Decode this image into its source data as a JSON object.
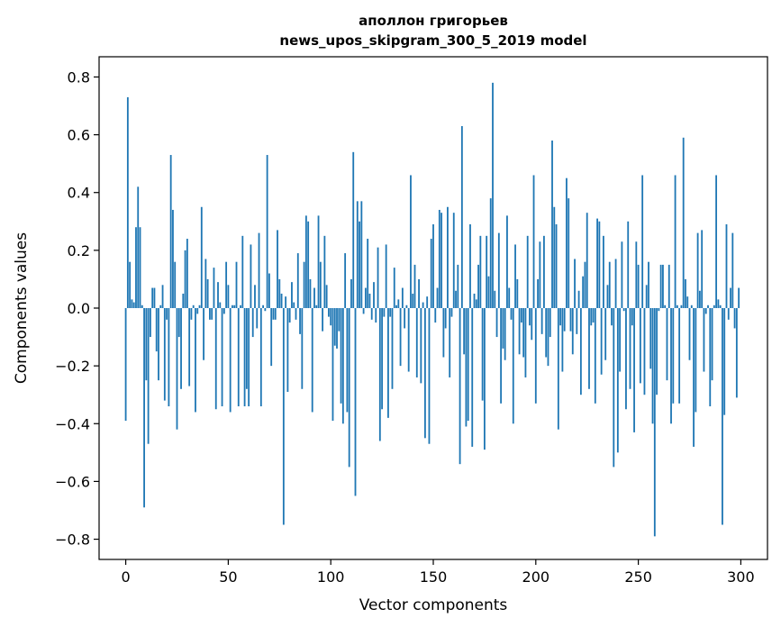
{
  "chart_data": {
    "type": "bar",
    "title_line1": "аполлон григорьев",
    "title_line2": "news_upos_skipgram_300_5_2019 model",
    "xlabel": "Vector components",
    "ylabel": "Components values",
    "xlim": [
      -13,
      313
    ],
    "ylim": [
      -0.87,
      0.87
    ],
    "xticks": [
      0,
      50,
      100,
      150,
      200,
      250,
      300
    ],
    "xtick_labels": [
      "0",
      "50",
      "100",
      "150",
      "200",
      "250",
      "300"
    ],
    "yticks": [
      -0.8,
      -0.6,
      -0.4,
      -0.2,
      0.0,
      0.2,
      0.4,
      0.6,
      0.8
    ],
    "ytick_labels": [
      "−0.8",
      "−0.6",
      "−0.4",
      "−0.2",
      "0.0",
      "0.2",
      "0.4",
      "0.6",
      "0.8"
    ],
    "grid": false,
    "bar_color": "#1f77b4",
    "x_start": 0,
    "values": [
      -0.39,
      0.73,
      0.16,
      0.03,
      0.02,
      0.28,
      0.42,
      0.28,
      0.01,
      -0.69,
      -0.25,
      -0.47,
      -0.1,
      0.07,
      0.07,
      -0.15,
      -0.25,
      0.01,
      0.08,
      -0.32,
      -0.04,
      -0.34,
      0.53,
      0.34,
      0.16,
      -0.42,
      -0.1,
      -0.28,
      0.05,
      0.2,
      0.24,
      -0.27,
      -0.04,
      0.01,
      -0.36,
      -0.02,
      0.01,
      0.35,
      -0.18,
      0.17,
      0.1,
      -0.04,
      -0.04,
      0.14,
      -0.35,
      0.09,
      0.02,
      -0.34,
      -0.02,
      0.16,
      0.08,
      -0.36,
      0.01,
      0.01,
      0.16,
      -0.34,
      0.01,
      0.25,
      -0.34,
      -0.28,
      -0.34,
      0.22,
      -0.1,
      0.08,
      -0.07,
      0.26,
      -0.34,
      0.01,
      -0.01,
      0.53,
      0.12,
      -0.2,
      -0.04,
      -0.04,
      0.27,
      0.1,
      0.05,
      -0.75,
      0.04,
      -0.29,
      -0.05,
      0.09,
      0.02,
      -0.04,
      0.19,
      -0.09,
      -0.28,
      0.16,
      0.32,
      0.3,
      0.1,
      -0.36,
      0.07,
      0.01,
      0.32,
      0.16,
      -0.08,
      0.25,
      0.08,
      -0.03,
      -0.06,
      -0.39,
      -0.13,
      -0.14,
      -0.08,
      -0.33,
      -0.4,
      0.19,
      -0.36,
      -0.55,
      0.1,
      0.54,
      -0.65,
      0.37,
      0.3,
      0.37,
      -0.02,
      0.07,
      0.24,
      0.05,
      -0.04,
      0.09,
      -0.05,
      0.21,
      -0.46,
      -0.35,
      -0.03,
      0.22,
      -0.38,
      -0.03,
      -0.28,
      0.14,
      0.01,
      0.03,
      -0.2,
      0.07,
      -0.07,
      0.01,
      -0.22,
      0.46,
      0.05,
      0.15,
      -0.24,
      0.1,
      -0.26,
      0.02,
      -0.45,
      0.04,
      -0.47,
      0.24,
      0.29,
      -0.05,
      0.07,
      0.34,
      0.33,
      -0.17,
      -0.07,
      0.35,
      -0.24,
      -0.03,
      0.33,
      0.06,
      0.15,
      -0.54,
      0.63,
      -0.16,
      -0.41,
      -0.39,
      0.29,
      -0.48,
      0.05,
      0.03,
      0.15,
      0.25,
      -0.32,
      -0.49,
      0.25,
      0.11,
      0.38,
      0.78,
      0.06,
      -0.1,
      0.26,
      -0.33,
      -0.14,
      -0.18,
      0.32,
      0.07,
      -0.04,
      -0.4,
      0.22,
      0.1,
      -0.16,
      -0.05,
      -0.17,
      -0.24,
      0.25,
      -0.06,
      -0.11,
      0.46,
      -0.33,
      0.1,
      0.23,
      -0.09,
      0.25,
      -0.17,
      -0.2,
      -0.1,
      0.58,
      0.35,
      0.29,
      -0.42,
      -0.06,
      -0.22,
      -0.08,
      0.45,
      0.38,
      -0.08,
      -0.16,
      0.17,
      -0.09,
      0.06,
      -0.3,
      0.11,
      0.16,
      0.33,
      -0.28,
      -0.06,
      -0.05,
      -0.33,
      0.31,
      0.3,
      -0.23,
      0.25,
      -0.18,
      0.08,
      0.16,
      -0.06,
      -0.55,
      0.17,
      -0.5,
      -0.22,
      0.23,
      -0.01,
      -0.35,
      0.3,
      -0.28,
      -0.06,
      -0.43,
      0.23,
      0.15,
      -0.26,
      0.46,
      -0.3,
      0.08,
      0.16,
      -0.21,
      -0.4,
      -0.79,
      -0.3,
      -0.01,
      0.15,
      0.15,
      0.01,
      -0.25,
      0.15,
      -0.4,
      -0.33,
      0.46,
      0.01,
      -0.33,
      0.01,
      0.59,
      0.1,
      0.04,
      -0.18,
      0.01,
      -0.48,
      -0.36,
      0.26,
      0.06,
      0.27,
      -0.22,
      -0.02,
      0.01,
      -0.34,
      -0.25,
      0.01,
      0.46,
      0.03,
      0.01,
      -0.75,
      -0.37,
      0.29,
      -0.04,
      0.07,
      0.26,
      -0.07,
      -0.31,
      0.07
    ]
  }
}
